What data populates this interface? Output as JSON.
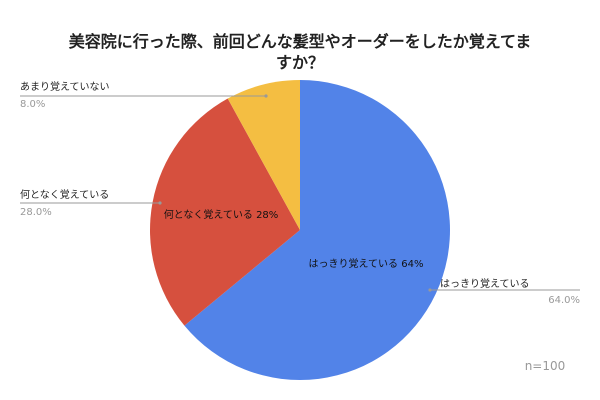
{
  "chart_data": {
    "type": "pie",
    "title": "美容院に行った際、前回どんな髪型やオーダーをしたか覚えてますか？",
    "title_lines": [
      "美容院に行った際、前回どんな髪型やオーダーをしたか覚えてま",
      "すか？"
    ],
    "slices": [
      {
        "label": "はっきり覚えている",
        "value": 64.0,
        "pct_text": "64.0%",
        "inner_label": "はっきり覚えている 64%",
        "color": "#5283E8"
      },
      {
        "label": "何となく覚えている",
        "value": 28.0,
        "pct_text": "28.0%",
        "inner_label": "何となく覚えている 28%",
        "color": "#D6503E"
      },
      {
        "label": "あまり覚えていない",
        "value": 8.0,
        "pct_text": "8.0%",
        "inner_label": "",
        "color": "#F4BE42"
      }
    ],
    "note": "n=100"
  }
}
